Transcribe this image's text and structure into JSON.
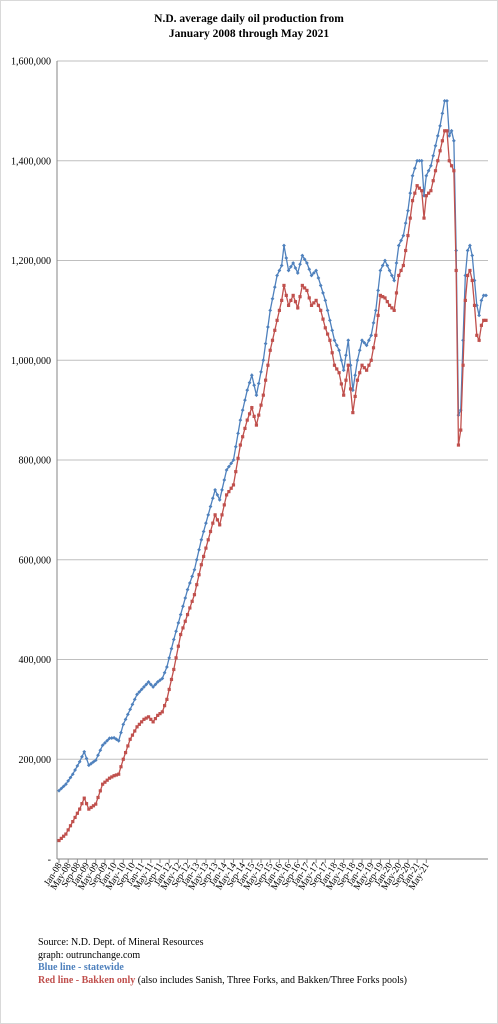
{
  "chart_data": {
    "type": "line",
    "title_lines": [
      "N.D. average daily oil production from",
      "January 2008 through May 2021"
    ],
    "xlabel": "",
    "ylabel": "",
    "ylim": [
      0,
      1600000
    ],
    "y_ticks": [
      {
        "value": 0,
        "label": "-"
      },
      {
        "value": 200000,
        "label": "200,000"
      },
      {
        "value": 400000,
        "label": "400,000"
      },
      {
        "value": 600000,
        "label": "600,000"
      },
      {
        "value": 800000,
        "label": "800,000"
      },
      {
        "value": 1000000,
        "label": "1,000,000"
      },
      {
        "value": 1200000,
        "label": "1,200,000"
      },
      {
        "value": 1400000,
        "label": "1,400,000"
      },
      {
        "value": 1600000,
        "label": "1,600,000"
      }
    ],
    "grid": "horizontal",
    "x_tick_labels": [
      "Jan-08",
      "May-08",
      "Sep-08",
      "Jan-09",
      "May-09",
      "Sep-09",
      "Jan-10",
      "May-10",
      "Sep-10",
      "Jan-11",
      "May-11",
      "Sep-11",
      "Jan-12",
      "May-12",
      "Sep-12",
      "Jan-13",
      "May-13",
      "Sep-13",
      "Jan-14",
      "May-14",
      "Sep-14",
      "Jan-15",
      "May-15",
      "Sep-15",
      "Jan-16",
      "May-16",
      "Sep-16",
      "Jan-17",
      "May-17",
      "Sep-17",
      "Jan-18",
      "May-18",
      "Sep-18",
      "Jan-19",
      "May-19",
      "Sep-19",
      "Jan-20",
      "May-20",
      "Sep-20",
      "Jan-21",
      "May-21"
    ],
    "series": [
      {
        "color": "#4f81bd",
        "marker": "diamond",
        "monthly_anchors": [
          [
            0,
            137000
          ],
          [
            3,
            150000
          ],
          [
            6,
            170000
          ],
          [
            9,
            195000
          ],
          [
            11,
            215000
          ],
          [
            13,
            188000
          ],
          [
            16,
            198000
          ],
          [
            19,
            228000
          ],
          [
            22,
            242000
          ],
          [
            24,
            243000
          ],
          [
            26,
            237000
          ],
          [
            28,
            270000
          ],
          [
            31,
            300000
          ],
          [
            34,
            330000
          ],
          [
            37,
            345000
          ],
          [
            39,
            355000
          ],
          [
            41,
            345000
          ],
          [
            43,
            355000
          ],
          [
            45,
            362000
          ],
          [
            47,
            385000
          ],
          [
            50,
            440000
          ],
          [
            53,
            490000
          ],
          [
            56,
            540000
          ],
          [
            59,
            580000
          ],
          [
            62,
            640000
          ],
          [
            65,
            690000
          ],
          [
            68,
            740000
          ],
          [
            70,
            720000
          ],
          [
            73,
            780000
          ],
          [
            76,
            800000
          ],
          [
            79,
            880000
          ],
          [
            82,
            940000
          ],
          [
            84,
            970000
          ],
          [
            86,
            930000
          ],
          [
            89,
            1000000
          ],
          [
            92,
            1100000
          ],
          [
            95,
            1170000
          ],
          [
            97,
            1190000
          ],
          [
            98,
            1230000
          ],
          [
            100,
            1180000
          ],
          [
            102,
            1195000
          ],
          [
            104,
            1175000
          ],
          [
            106,
            1210000
          ],
          [
            108,
            1195000
          ],
          [
            110,
            1170000
          ],
          [
            112,
            1180000
          ],
          [
            114,
            1150000
          ],
          [
            116,
            1120000
          ],
          [
            118,
            1080000
          ],
          [
            120,
            1040000
          ],
          [
            122,
            1020000
          ],
          [
            124,
            980000
          ],
          [
            126,
            1040000
          ],
          [
            128,
            940000
          ],
          [
            130,
            1000000
          ],
          [
            132,
            1040000
          ],
          [
            134,
            1030000
          ],
          [
            136,
            1050000
          ],
          [
            138,
            1100000
          ],
          [
            140,
            1180000
          ],
          [
            142,
            1200000
          ],
          [
            144,
            1180000
          ],
          [
            146,
            1160000
          ],
          [
            148,
            1230000
          ],
          [
            150,
            1250000
          ],
          [
            152,
            1300000
          ],
          [
            154,
            1370000
          ],
          [
            156,
            1400000
          ],
          [
            158,
            1400000
          ],
          [
            159,
            1330000
          ],
          [
            160,
            1370000
          ],
          [
            162,
            1390000
          ],
          [
            164,
            1430000
          ],
          [
            166,
            1470000
          ],
          [
            168,
            1520000
          ],
          [
            169,
            1520000
          ],
          [
            170,
            1450000
          ],
          [
            171,
            1460000
          ],
          [
            172,
            1440000
          ],
          [
            173,
            1220000
          ],
          [
            174,
            890000
          ],
          [
            175,
            900000
          ],
          [
            176,
            1040000
          ],
          [
            177,
            1170000
          ],
          [
            178,
            1220000
          ],
          [
            179,
            1230000
          ],
          [
            180,
            1210000
          ],
          [
            181,
            1160000
          ],
          [
            182,
            1110000
          ],
          [
            183,
            1090000
          ],
          [
            184,
            1120000
          ],
          [
            185,
            1130000
          ],
          [
            186,
            1130000
          ]
        ]
      },
      {
        "color": "#c0504d",
        "marker": "square",
        "monthly_anchors": [
          [
            0,
            37000
          ],
          [
            3,
            50000
          ],
          [
            6,
            75000
          ],
          [
            9,
            100000
          ],
          [
            11,
            122000
          ],
          [
            13,
            100000
          ],
          [
            16,
            110000
          ],
          [
            19,
            150000
          ],
          [
            22,
            162000
          ],
          [
            24,
            167000
          ],
          [
            26,
            170000
          ],
          [
            28,
            200000
          ],
          [
            31,
            240000
          ],
          [
            34,
            265000
          ],
          [
            37,
            280000
          ],
          [
            39,
            285000
          ],
          [
            41,
            275000
          ],
          [
            43,
            288000
          ],
          [
            45,
            295000
          ],
          [
            47,
            320000
          ],
          [
            50,
            380000
          ],
          [
            53,
            450000
          ],
          [
            56,
            490000
          ],
          [
            59,
            530000
          ],
          [
            62,
            590000
          ],
          [
            65,
            640000
          ],
          [
            68,
            690000
          ],
          [
            70,
            670000
          ],
          [
            73,
            730000
          ],
          [
            76,
            750000
          ],
          [
            79,
            830000
          ],
          [
            82,
            880000
          ],
          [
            84,
            905000
          ],
          [
            86,
            870000
          ],
          [
            89,
            930000
          ],
          [
            92,
            1020000
          ],
          [
            95,
            1080000
          ],
          [
            97,
            1120000
          ],
          [
            98,
            1150000
          ],
          [
            100,
            1110000
          ],
          [
            102,
            1130000
          ],
          [
            104,
            1105000
          ],
          [
            106,
            1150000
          ],
          [
            108,
            1140000
          ],
          [
            110,
            1110000
          ],
          [
            112,
            1120000
          ],
          [
            114,
            1100000
          ],
          [
            116,
            1065000
          ],
          [
            118,
            1040000
          ],
          [
            120,
            990000
          ],
          [
            122,
            975000
          ],
          [
            124,
            930000
          ],
          [
            126,
            990000
          ],
          [
            128,
            895000
          ],
          [
            130,
            960000
          ],
          [
            132,
            990000
          ],
          [
            134,
            980000
          ],
          [
            136,
            1000000
          ],
          [
            138,
            1050000
          ],
          [
            140,
            1130000
          ],
          [
            142,
            1125000
          ],
          [
            144,
            1110000
          ],
          [
            146,
            1100000
          ],
          [
            148,
            1170000
          ],
          [
            150,
            1190000
          ],
          [
            152,
            1250000
          ],
          [
            154,
            1320000
          ],
          [
            156,
            1350000
          ],
          [
            158,
            1340000
          ],
          [
            159,
            1285000
          ],
          [
            160,
            1330000
          ],
          [
            162,
            1340000
          ],
          [
            164,
            1380000
          ],
          [
            166,
            1420000
          ],
          [
            168,
            1460000
          ],
          [
            169,
            1460000
          ],
          [
            170,
            1400000
          ],
          [
            171,
            1390000
          ],
          [
            172,
            1380000
          ],
          [
            173,
            1180000
          ],
          [
            174,
            830000
          ],
          [
            175,
            860000
          ],
          [
            176,
            990000
          ],
          [
            177,
            1120000
          ],
          [
            178,
            1170000
          ],
          [
            179,
            1180000
          ],
          [
            180,
            1160000
          ],
          [
            181,
            1110000
          ],
          [
            182,
            1050000
          ],
          [
            183,
            1040000
          ],
          [
            184,
            1070000
          ],
          [
            185,
            1080000
          ],
          [
            186,
            1080000
          ]
        ]
      }
    ]
  },
  "notes": {
    "source": "Source: N.D. Dept. of Mineral Resources",
    "graph": "graph: outrunchange.com",
    "blue": "Blue line - statewide",
    "red_bold": "Red line - Bakken only",
    "red_rest": " (also includes Sanish, Three Forks, and Bakken/Three Forks pools)"
  }
}
